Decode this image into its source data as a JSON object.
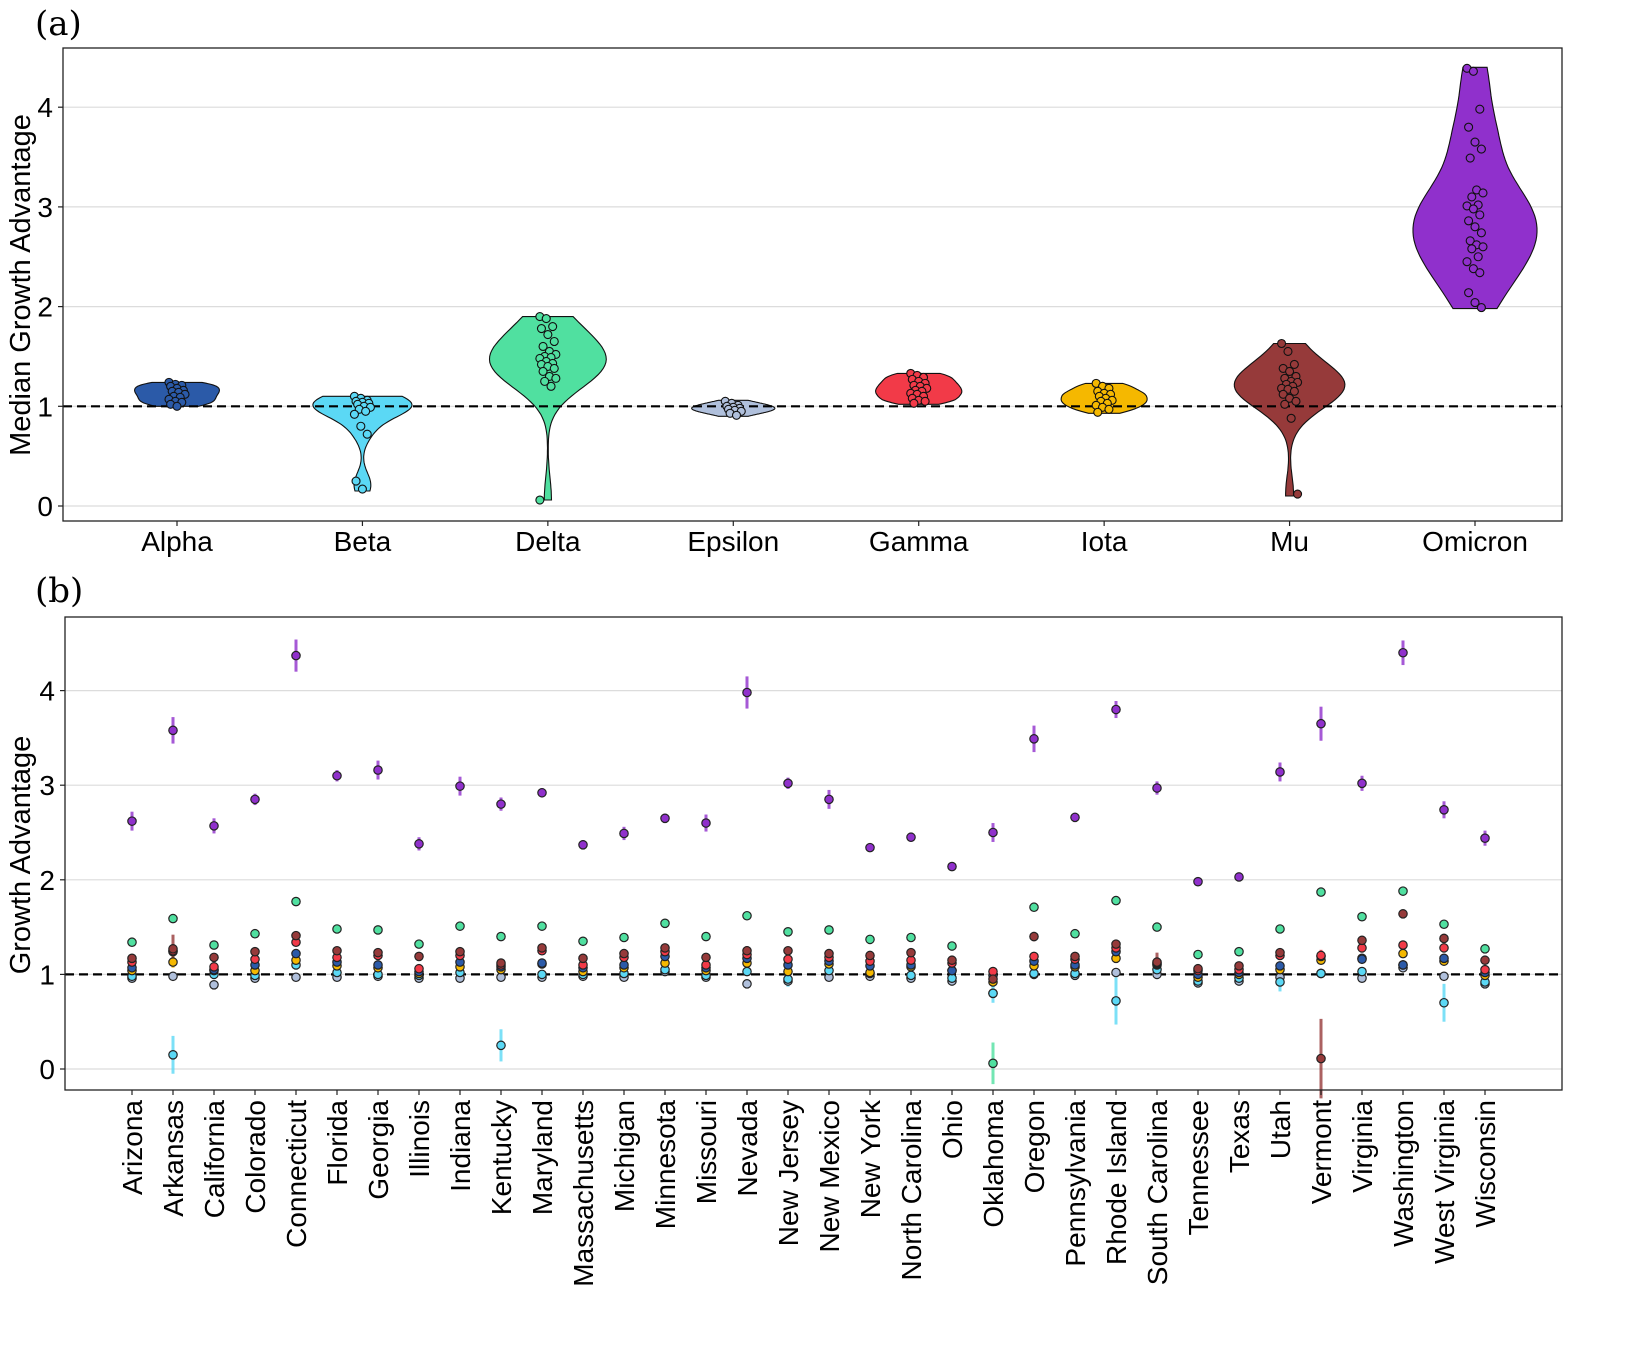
{
  "chart_data": [
    {
      "panel_label": "(a)",
      "type": "violin",
      "ylabel": "Median Growth Advantage",
      "xlabel": "",
      "ylim": [
        -0.15,
        4.6
      ],
      "yticks": [
        0,
        1,
        2,
        3,
        4
      ],
      "grid": true,
      "reference_line": 1,
      "categories": [
        "Alpha",
        "Beta",
        "Delta",
        "Epsilon",
        "Gamma",
        "Iota",
        "Mu",
        "Omicron"
      ],
      "colors": [
        "#2b5aa8",
        "#5bd8f5",
        "#50e0a0",
        "#b0c0dc",
        "#f23a48",
        "#f5b800",
        "#963a3a",
        "#9030cc"
      ],
      "series": [
        {
          "name": "Alpha",
          "range": [
            1.0,
            1.24
          ],
          "points": [
            1.24,
            1.22,
            1.21,
            1.2,
            1.18,
            1.16,
            1.15,
            1.14,
            1.12,
            1.1,
            1.09,
            1.07,
            1.05,
            1.04,
            1.02,
            1.0
          ]
        },
        {
          "name": "Beta",
          "range": [
            0.15,
            1.1
          ],
          "points": [
            1.1,
            1.08,
            1.06,
            1.05,
            1.04,
            1.03,
            1.02,
            1.0,
            0.99,
            0.97,
            0.95,
            0.92,
            0.8,
            0.72,
            0.25,
            0.17
          ]
        },
        {
          "name": "Delta",
          "range": [
            0.06,
            1.9
          ],
          "points": [
            1.9,
            1.88,
            1.8,
            1.78,
            1.72,
            1.65,
            1.6,
            1.55,
            1.52,
            1.5,
            1.49,
            1.48,
            1.45,
            1.43,
            1.42,
            1.4,
            1.38,
            1.35,
            1.3,
            1.28,
            1.25,
            1.2,
            0.06
          ]
        },
        {
          "name": "Epsilon",
          "range": [
            0.9,
            1.06
          ],
          "points": [
            1.05,
            1.03,
            1.01,
            1.0,
            0.99,
            0.98,
            0.97,
            0.96,
            0.95,
            0.93,
            0.91
          ]
        },
        {
          "name": "Gamma",
          "range": [
            1.02,
            1.33
          ],
          "points": [
            1.33,
            1.31,
            1.29,
            1.27,
            1.25,
            1.23,
            1.21,
            1.2,
            1.18,
            1.16,
            1.15,
            1.13,
            1.12,
            1.1,
            1.08,
            1.06,
            1.05,
            1.03
          ]
        },
        {
          "name": "Iota",
          "range": [
            0.93,
            1.23
          ],
          "points": [
            1.23,
            1.2,
            1.18,
            1.15,
            1.13,
            1.12,
            1.1,
            1.08,
            1.06,
            1.05,
            1.03,
            1.01,
            0.99,
            0.97,
            0.94
          ]
        },
        {
          "name": "Mu",
          "range": [
            0.1,
            1.63
          ],
          "points": [
            1.63,
            1.55,
            1.42,
            1.38,
            1.35,
            1.3,
            1.28,
            1.25,
            1.24,
            1.22,
            1.2,
            1.18,
            1.17,
            1.15,
            1.12,
            1.08,
            1.05,
            1.02,
            0.88,
            0.12
          ]
        },
        {
          "name": "Omicron",
          "range": [
            1.98,
            4.4
          ],
          "points": [
            4.39,
            4.36,
            3.98,
            3.8,
            3.65,
            3.58,
            3.49,
            3.17,
            3.14,
            3.1,
            3.02,
            3.01,
            2.98,
            2.92,
            2.86,
            2.8,
            2.74,
            2.66,
            2.62,
            2.6,
            2.58,
            2.5,
            2.45,
            2.38,
            2.34,
            2.14,
            2.04,
            1.99
          ]
        }
      ]
    },
    {
      "panel_label": "(b)",
      "type": "scatter",
      "ylabel": "Growth Advantage",
      "xlabel": "",
      "ylim": [
        -0.2,
        4.8
      ],
      "yticks": [
        0,
        1,
        2,
        3,
        4
      ],
      "grid": true,
      "reference_line": 1,
      "categories": [
        "Arizona",
        "Arkansas",
        "California",
        "Colorado",
        "Connecticut",
        "Florida",
        "Georgia",
        "Illinois",
        "Indiana",
        "Kentucky",
        "Maryland",
        "Massachusetts",
        "Michigan",
        "Minnesota",
        "Missouri",
        "Nevada",
        "New Jersey",
        "New Mexico",
        "New York",
        "North Carolina",
        "Ohio",
        "Oklahoma",
        "Oregon",
        "Pennsylvania",
        "Rhode Island",
        "South Carolina",
        "Tennessee",
        "Texas",
        "Utah",
        "Vermont",
        "Virginia",
        "Washington",
        "West Virginia",
        "Wisconsin"
      ],
      "variant_colors": {
        "Alpha": "#2b5aa8",
        "Beta": "#5bd8f5",
        "Delta": "#50e0a0",
        "Epsilon": "#b0c0dc",
        "Gamma": "#f23a48",
        "Iota": "#f5b800",
        "Mu": "#963a3a",
        "Omicron": "#9030cc"
      },
      "series": [
        {
          "name": "Omicron",
          "values": [
            2.62,
            3.58,
            2.57,
            2.85,
            4.37,
            3.1,
            3.16,
            2.38,
            2.99,
            2.8,
            2.92,
            2.37,
            2.49,
            2.65,
            2.6,
            3.98,
            3.02,
            2.85,
            2.34,
            2.45,
            2.14,
            2.5,
            3.49,
            2.66,
            3.8,
            2.97,
            1.98,
            2.03,
            3.14,
            3.65,
            3.02,
            4.4,
            2.74,
            2.44
          ],
          "err": [
            0.1,
            0.14,
            0.08,
            0.06,
            0.17,
            0.06,
            0.1,
            0.07,
            0.1,
            0.07,
            0.05,
            0.05,
            0.07,
            0.05,
            0.09,
            0.17,
            0.06,
            0.1,
            0.04,
            0.05,
            0.04,
            0.1,
            0.14,
            0.05,
            0.09,
            0.07,
            0.04,
            0.03,
            0.1,
            0.18,
            0.08,
            0.13,
            0.09,
            0.08
          ]
        },
        {
          "name": "Delta",
          "values": [
            1.34,
            1.59,
            1.31,
            1.43,
            1.77,
            1.48,
            1.47,
            1.32,
            1.51,
            1.4,
            1.51,
            1.35,
            1.39,
            1.54,
            1.4,
            1.62,
            1.45,
            1.47,
            1.37,
            1.39,
            1.3,
            0.06,
            1.71,
            1.43,
            1.78,
            1.5,
            1.21,
            1.24,
            1.48,
            1.87,
            1.61,
            1.88,
            1.53,
            1.27
          ],
          "err": [
            0,
            0,
            0,
            0,
            0,
            0,
            0,
            0,
            0,
            0,
            0,
            0,
            0,
            0,
            0,
            0,
            0,
            0,
            0,
            0,
            0,
            0.22,
            0,
            0,
            0,
            0,
            0,
            0,
            0,
            0,
            0,
            0,
            0,
            0
          ]
        },
        {
          "name": "Mu",
          "values": [
            1.17,
            1.27,
            1.18,
            1.24,
            1.41,
            1.25,
            1.23,
            1.19,
            1.24,
            1.12,
            1.28,
            1.17,
            1.22,
            1.28,
            1.18,
            1.25,
            1.25,
            1.22,
            1.2,
            1.23,
            1.15,
            0.95,
            1.4,
            1.19,
            1.32,
            1.13,
            1.06,
            1.09,
            1.23,
            0.11,
            1.36,
            1.64,
            1.38,
            1.15
          ],
          "err": [
            0,
            0.15,
            0,
            0,
            0.04,
            0,
            0,
            0,
            0.03,
            0,
            0.03,
            0,
            0,
            0,
            0,
            0.05,
            0,
            0,
            0,
            0,
            0,
            0,
            0.05,
            0,
            0,
            0.1,
            0,
            0,
            0,
            0.42,
            0,
            0,
            0.05,
            0
          ]
        },
        {
          "name": "Gamma",
          "values": [
            1.13,
            1.25,
            1.08,
            1.16,
            1.34,
            1.18,
            1.2,
            1.06,
            1.2,
            1.1,
            1.25,
            1.1,
            1.18,
            1.24,
            1.1,
            1.21,
            1.16,
            1.18,
            1.14,
            1.15,
            1.12,
            1.03,
            1.19,
            1.16,
            1.28,
            1.12,
            1.04,
            1.05,
            1.2,
            1.2,
            1.28,
            1.31,
            1.28,
            1.05
          ],
          "err": [
            0,
            0,
            0,
            0,
            0,
            0,
            0,
            0,
            0,
            0,
            0,
            0,
            0,
            0,
            0,
            0,
            0,
            0,
            0,
            0,
            0,
            0,
            0,
            0,
            0,
            0,
            0,
            0,
            0,
            0.06,
            0,
            0,
            0,
            0
          ]
        },
        {
          "name": "Alpha",
          "values": [
            1.07,
            1.24,
            1.05,
            1.1,
            1.22,
            1.13,
            1.1,
            1.03,
            1.13,
            1.08,
            1.12,
            1.07,
            1.1,
            1.19,
            1.07,
            1.17,
            1.1,
            1.14,
            1.09,
            1.1,
            1.04,
            0.99,
            1.14,
            1.1,
            1.24,
            1.11,
            1.0,
            1.02,
            1.09,
            1.19,
            1.16,
            1.1,
            1.17,
            1.02
          ],
          "err": [
            0,
            0,
            0,
            0,
            0,
            0,
            0,
            0,
            0,
            0,
            0,
            0,
            0,
            0,
            0,
            0,
            0,
            0,
            0,
            0,
            0,
            0,
            0,
            0,
            0,
            0,
            0,
            0,
            0,
            0,
            0,
            0,
            0,
            0
          ]
        },
        {
          "name": "Iota",
          "values": [
            1.04,
            1.13,
            1.04,
            1.04,
            1.15,
            1.09,
            1.07,
            1.01,
            1.08,
            1.05,
            1.11,
            1.03,
            1.07,
            1.12,
            1.04,
            1.12,
            1.03,
            1.11,
            1.02,
            1.08,
            1.04,
            0.92,
            1.09,
            1.08,
            1.17,
            1.1,
            0.97,
            1.0,
            1.05,
            1.15,
            1.17,
            1.22,
            1.14,
            0.99
          ],
          "err": [
            0,
            0.06,
            0,
            0,
            0,
            0,
            0,
            0,
            0,
            0,
            0,
            0,
            0,
            0,
            0,
            0,
            0,
            0,
            0,
            0,
            0,
            0,
            0,
            0,
            0,
            0,
            0,
            0,
            0,
            0,
            0,
            0,
            0,
            0
          ]
        },
        {
          "name": "Beta",
          "values": [
            0.98,
            0.15,
            1.0,
            0.99,
            1.1,
            1.02,
            1.0,
            0.99,
            1.02,
            0.25,
            1.0,
            1.0,
            1.01,
            1.05,
            0.99,
            1.03,
            0.95,
            1.04,
            1.01,
            0.99,
            0.96,
            0.8,
            1.01,
            1.01,
            0.72,
            1.05,
            0.93,
            0.96,
            0.92,
            1.01,
            1.03,
            1.1,
            0.7,
            0.92
          ],
          "err": [
            0.03,
            0.2,
            0,
            0,
            0.05,
            0,
            0,
            0,
            0,
            0.17,
            0,
            0,
            0,
            0,
            0,
            0,
            0.08,
            0.05,
            0,
            0,
            0,
            0.1,
            0,
            0,
            0.25,
            0,
            0,
            0,
            0.1,
            0,
            0,
            0,
            0.2,
            0
          ]
        },
        {
          "name": "Epsilon",
          "values": [
            0.96,
            0.98,
            0.89,
            0.96,
            0.97,
            0.97,
            0.98,
            0.96,
            0.96,
            0.97,
            0.97,
            0.98,
            0.97,
            1.03,
            0.97,
            0.9,
            0.93,
            0.97,
            0.98,
            0.96,
            0.93,
            0.8,
            1.0,
            0.99,
            1.02,
            1.0,
            0.91,
            0.93,
            0.97,
            1.01,
            0.96,
            1.07,
            0.98,
            0.9
          ],
          "err": [
            0,
            0,
            0,
            0,
            0,
            0,
            0,
            0,
            0,
            0,
            0,
            0,
            0,
            0,
            0,
            0,
            0,
            0,
            0,
            0,
            0,
            0,
            0,
            0,
            0,
            0,
            0,
            0,
            0,
            0,
            0,
            0,
            0,
            0
          ]
        }
      ]
    }
  ]
}
